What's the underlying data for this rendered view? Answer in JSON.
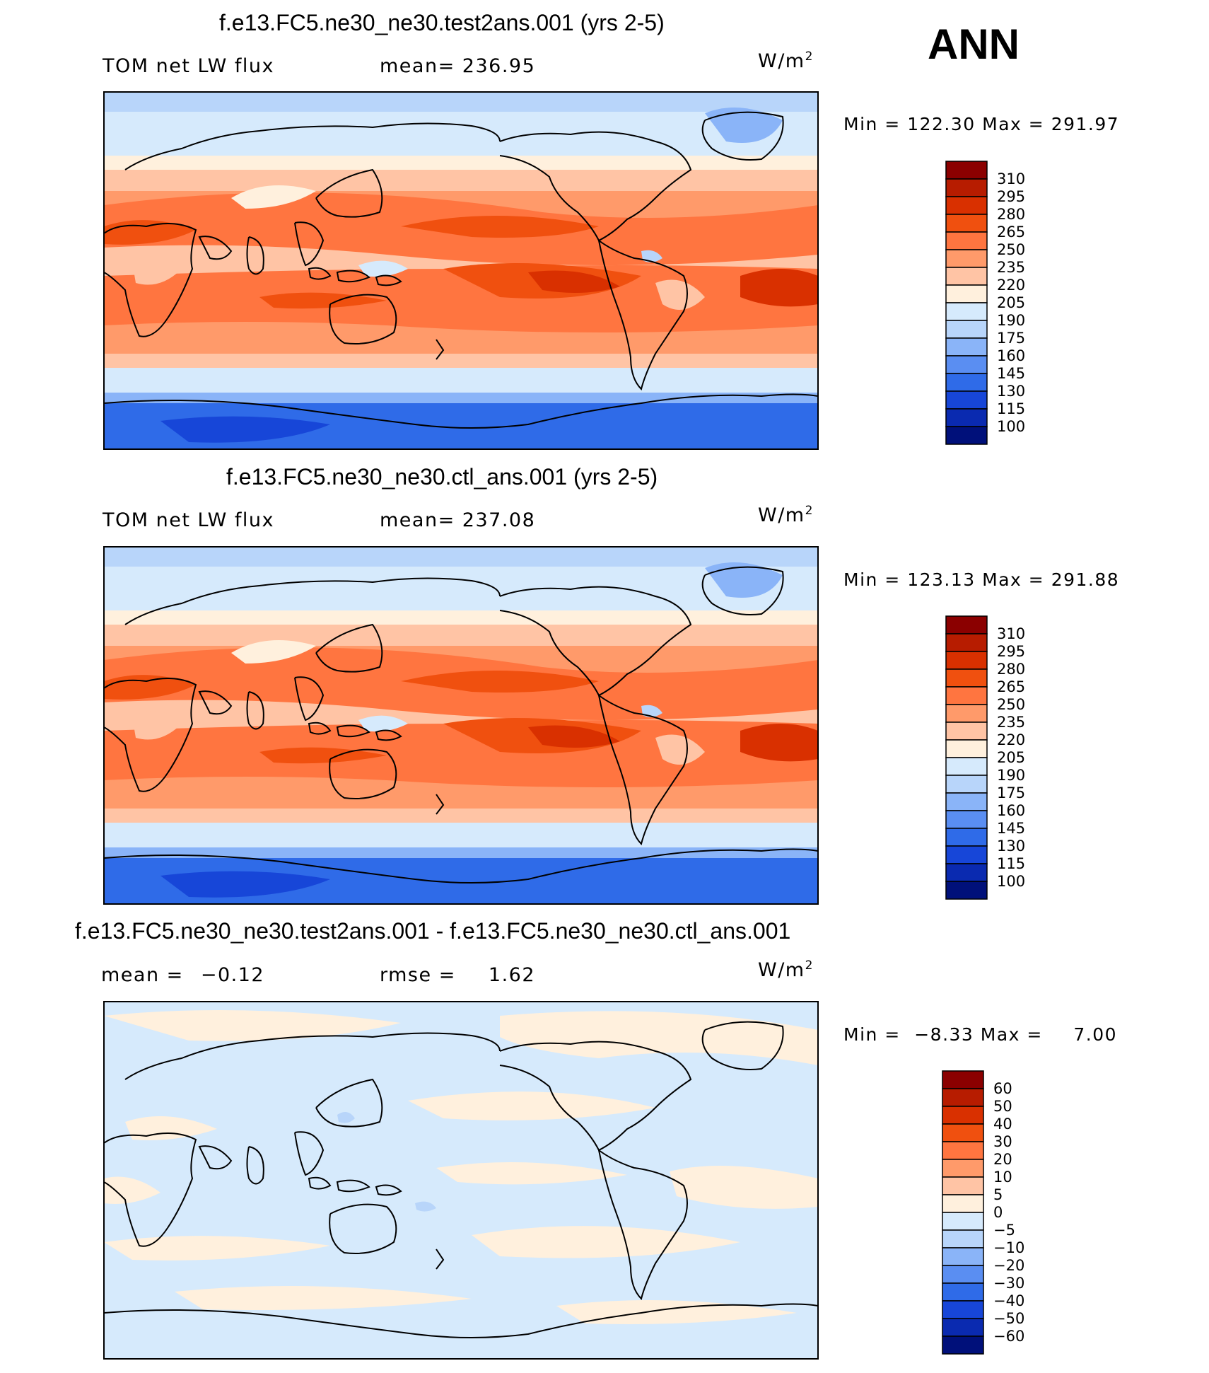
{
  "season": "ANN",
  "colors": {
    "land_outline": "#000000",
    "frame": "#000000"
  },
  "panels": [
    {
      "title": "f.e13.FC5.ne30_ne30.test2ans.001 (yrs 2-5)",
      "left_label": "TOM net LW flux",
      "stat_label": "mean=",
      "stat_value": "236.95",
      "units_base": "W/m",
      "units_exp": "2",
      "min_label": "Min =",
      "min_value": "122.30",
      "max_label": "Max =",
      "max_value": "291.97",
      "colorbar": {
        "labels": [
          "310",
          "295",
          "280",
          "265",
          "250",
          "235",
          "220",
          "205",
          "190",
          "175",
          "160",
          "145",
          "130",
          "115",
          "100"
        ],
        "colors": [
          "#8b0000",
          "#b71c00",
          "#d93000",
          "#f0500f",
          "#ff7540",
          "#ff9a6a",
          "#ffc4a5",
          "#fff0dd",
          "#d6eafc",
          "#b8d5fa",
          "#8ab4f8",
          "#5a8ef2",
          "#2f6be8",
          "#1746d8",
          "#0a2ab0",
          "#00107a"
        ]
      }
    },
    {
      "title": "f.e13.FC5.ne30_ne30.ctl_ans.001 (yrs 2-5)",
      "left_label": "TOM net LW flux",
      "stat_label": "mean=",
      "stat_value": "237.08",
      "units_base": "W/m",
      "units_exp": "2",
      "min_label": "Min =",
      "min_value": "123.13",
      "max_label": "Max =",
      "max_value": "291.88",
      "colorbar": {
        "labels": [
          "310",
          "295",
          "280",
          "265",
          "250",
          "235",
          "220",
          "205",
          "190",
          "175",
          "160",
          "145",
          "130",
          "115",
          "100"
        ],
        "colors": [
          "#8b0000",
          "#b71c00",
          "#d93000",
          "#f0500f",
          "#ff7540",
          "#ff9a6a",
          "#ffc4a5",
          "#fff0dd",
          "#d6eafc",
          "#b8d5fa",
          "#8ab4f8",
          "#5a8ef2",
          "#2f6be8",
          "#1746d8",
          "#0a2ab0",
          "#00107a"
        ]
      }
    },
    {
      "title": "f.e13.FC5.ne30_ne30.test2ans.001 - f.e13.FC5.ne30_ne30.ctl_ans.001",
      "left_label": "mean =",
      "left_value": "−0.12",
      "stat_label": "rmse =",
      "stat_value": "1.62",
      "units_base": "W/m",
      "units_exp": "2",
      "min_label": "Min =",
      "min_value": "−8.33",
      "max_label": "Max =",
      "max_value": "7.00",
      "colorbar": {
        "labels": [
          "60",
          "50",
          "40",
          "30",
          "20",
          "10",
          "5",
          "0",
          "−5",
          "−10",
          "−20",
          "−30",
          "−40",
          "−50",
          "−60"
        ],
        "colors": [
          "#8b0000",
          "#b71c00",
          "#d93000",
          "#f0500f",
          "#ff7540",
          "#ff9a6a",
          "#ffc4a5",
          "#fff0dd",
          "#d6eafc",
          "#b8d5fa",
          "#8ab4f8",
          "#5a8ef2",
          "#2f6be8",
          "#1746d8",
          "#0a2ab0",
          "#00107a"
        ]
      }
    }
  ]
}
